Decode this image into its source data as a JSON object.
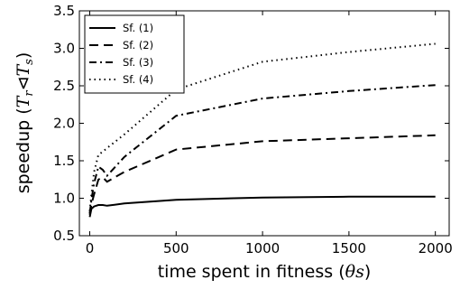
{
  "chart_data": {
    "type": "line",
    "xlabel_prefix": "time spent in fitness (",
    "xlabel_math": "θ",
    "xlabel_unit": "s",
    "xlabel_suffix": ")",
    "ylabel_prefix": "speedup (",
    "ylabel_t1": "T",
    "ylabel_sub1": "r",
    "ylabel_sep": "⊲",
    "ylabel_t2": "T",
    "ylabel_sub2": "s",
    "ylabel_suffix": ")",
    "xlim": [
      -60,
      2080
    ],
    "ylim": [
      0.5,
      3.5
    ],
    "xticks": [
      0,
      500,
      1000,
      1500,
      2000
    ],
    "yticks": [
      0.5,
      1.0,
      1.5,
      2.0,
      2.5,
      3.0,
      3.5
    ],
    "xtick_labels": [
      "0",
      "500",
      "1000",
      "1500",
      "2000"
    ],
    "ytick_labels": [
      "0.5",
      "1.0",
      "1.5",
      "2.0",
      "2.5",
      "3.0",
      "3.5"
    ],
    "grid": false,
    "legend_position": "top-left",
    "series": [
      {
        "name": "Sf. (1)",
        "style": "solid",
        "x": [
          0,
          10,
          25,
          50,
          75,
          100,
          200,
          500,
          1000,
          1500,
          2000
        ],
        "y": [
          0.75,
          0.86,
          0.89,
          0.91,
          0.91,
          0.9,
          0.93,
          0.98,
          1.01,
          1.02,
          1.02
        ]
      },
      {
        "name": "Sf. (2)",
        "style": "dashed",
        "x": [
          0,
          10,
          25,
          50,
          75,
          100,
          200,
          500,
          1000,
          1500,
          2000
        ],
        "y": [
          0.78,
          0.92,
          1.05,
          1.25,
          1.28,
          1.22,
          1.35,
          1.65,
          1.76,
          1.8,
          1.84
        ]
      },
      {
        "name": "Sf. (3)",
        "style": "dashdot",
        "x": [
          0,
          10,
          25,
          50,
          75,
          100,
          200,
          500,
          1000,
          1500,
          2000
        ],
        "y": [
          0.8,
          0.98,
          1.2,
          1.42,
          1.38,
          1.3,
          1.55,
          2.1,
          2.33,
          2.43,
          2.51
        ]
      },
      {
        "name": "Sf. (4)",
        "style": "dotted",
        "x": [
          0,
          10,
          25,
          50,
          75,
          100,
          200,
          500,
          1000,
          1500,
          2000
        ],
        "y": [
          0.83,
          1.05,
          1.35,
          1.58,
          1.62,
          1.67,
          1.85,
          2.45,
          2.82,
          2.95,
          3.06
        ]
      }
    ]
  }
}
